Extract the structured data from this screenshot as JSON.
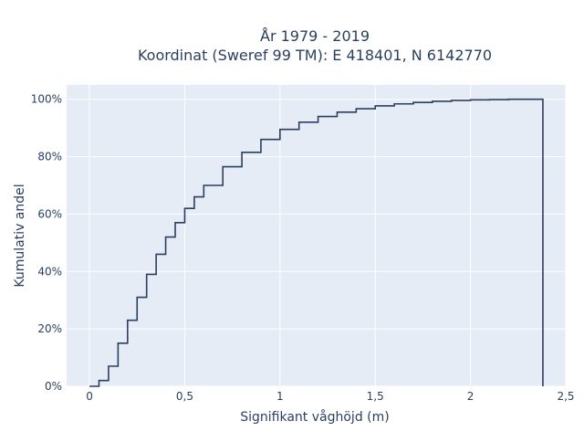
{
  "chart_data": {
    "type": "line",
    "title_lines": [
      "År 1979 - 2019",
      "Koordinat (Sweref 99 TM): E 418401, N 6142770"
    ],
    "xlabel": "Signifikant våghöjd (m)",
    "ylabel": "Kumulativ andel",
    "xlim": [
      -0.12,
      2.5
    ],
    "ylim": [
      0,
      1.05
    ],
    "x_ticks": [
      0,
      0.5,
      1,
      1.5,
      2,
      2.5
    ],
    "x_tick_labels": [
      "0",
      "0,5",
      "1",
      "1,5",
      "2",
      "2,5"
    ],
    "y_ticks": [
      0,
      0.2,
      0.4,
      0.6,
      0.8,
      1.0
    ],
    "y_tick_labels": [
      "0%",
      "20%",
      "40%",
      "60%",
      "80%",
      "100%"
    ],
    "line_shape": "step",
    "grid": true,
    "colors": {
      "plot_background": "#e5ecf6",
      "grid": "#ffffff",
      "line": "#2a3f5f"
    },
    "series": [
      {
        "x": [
          0,
          0.05,
          0.1,
          0.15,
          0.2,
          0.25,
          0.3,
          0.35,
          0.4,
          0.45,
          0.5,
          0.55,
          0.6,
          0.7,
          0.8,
          0.9,
          1.0,
          1.1,
          1.2,
          1.3,
          1.4,
          1.5,
          1.6,
          1.7,
          1.8,
          1.9,
          2.0,
          2.1,
          2.2,
          2.3,
          2.38,
          2.38
        ],
        "y": [
          0,
          0.02,
          0.07,
          0.15,
          0.23,
          0.31,
          0.39,
          0.46,
          0.52,
          0.57,
          0.62,
          0.66,
          0.7,
          0.765,
          0.815,
          0.86,
          0.895,
          0.92,
          0.94,
          0.955,
          0.967,
          0.977,
          0.984,
          0.989,
          0.993,
          0.996,
          0.998,
          0.999,
          1.0,
          1.0,
          1.0,
          0
        ]
      }
    ]
  }
}
